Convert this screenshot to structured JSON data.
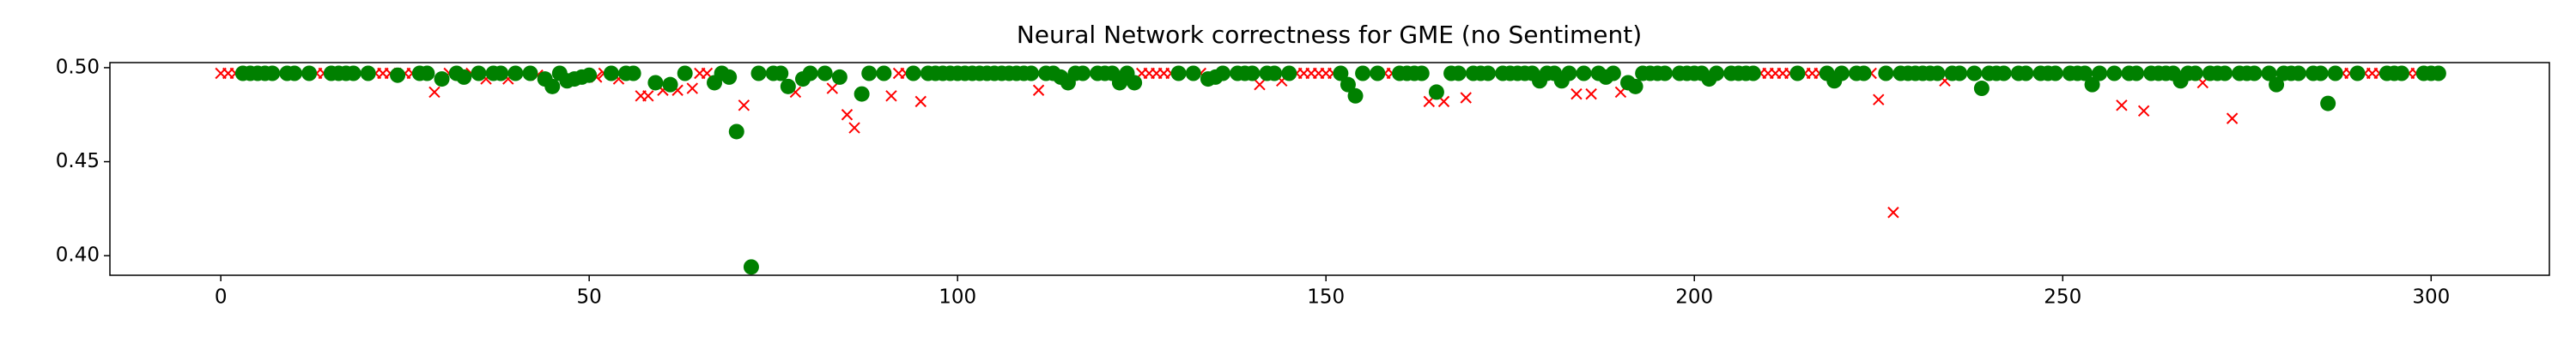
{
  "chart_data": {
    "type": "scatter",
    "title": "Neural Network correctness for GME (no Sentiment)",
    "xlim": [
      -15.05,
      316.05
    ],
    "xticks": [
      0,
      50,
      100,
      150,
      200,
      250,
      300
    ],
    "ylim": [
      0.3896,
      0.5027
    ],
    "yticks": [
      {
        "value": 0.4,
        "label": "0.40"
      },
      {
        "value": 0.45,
        "label": "0.45"
      },
      {
        "value": 0.5,
        "label": "0.50"
      }
    ],
    "grid": false,
    "series": [
      {
        "color": "#ff0000",
        "marker": "x",
        "x": [
          0,
          1,
          2,
          8,
          11,
          13,
          14,
          19,
          21,
          22,
          23,
          25,
          26,
          29,
          31,
          34,
          36,
          39,
          41,
          43,
          51,
          52,
          54,
          57,
          58,
          60,
          62,
          64,
          65,
          66,
          71,
          74,
          78,
          81,
          83,
          85,
          86,
          89,
          91,
          92,
          93,
          95,
          111,
          118,
          125,
          126,
          127,
          128,
          129,
          131,
          133,
          137,
          141,
          144,
          146,
          147,
          148,
          149,
          150,
          151,
          156,
          158,
          159,
          164,
          166,
          169,
          173,
          184,
          186,
          190,
          197,
          204,
          209,
          210,
          211,
          212,
          213,
          215,
          216,
          217,
          221,
          224,
          225,
          227,
          234,
          237,
          243,
          246,
          250,
          256,
          258,
          261,
          269,
          273,
          277,
          283,
          288,
          289,
          291,
          292,
          293,
          297,
          298
        ],
        "values": [
          0.497,
          0.497,
          0.497,
          0.497,
          0.497,
          0.497,
          0.497,
          0.497,
          0.497,
          0.497,
          0.497,
          0.497,
          0.497,
          0.487,
          0.497,
          0.497,
          0.494,
          0.494,
          0.497,
          0.496,
          0.495,
          0.497,
          0.494,
          0.485,
          0.485,
          0.488,
          0.488,
          0.489,
          0.497,
          0.497,
          0.48,
          0.497,
          0.487,
          0.497,
          0.489,
          0.475,
          0.468,
          0.497,
          0.485,
          0.497,
          0.497,
          0.482,
          0.488,
          0.497,
          0.497,
          0.497,
          0.497,
          0.497,
          0.497,
          0.497,
          0.497,
          0.497,
          0.491,
          0.493,
          0.497,
          0.497,
          0.497,
          0.497,
          0.497,
          0.497,
          0.497,
          0.497,
          0.497,
          0.482,
          0.482,
          0.484,
          0.497,
          0.486,
          0.486,
          0.487,
          0.497,
          0.497,
          0.497,
          0.497,
          0.497,
          0.497,
          0.497,
          0.497,
          0.497,
          0.497,
          0.497,
          0.497,
          0.483,
          0.423,
          0.493,
          0.497,
          0.497,
          0.497,
          0.497,
          0.497,
          0.48,
          0.477,
          0.492,
          0.473,
          0.497,
          0.497,
          0.497,
          0.497,
          0.497,
          0.497,
          0.497,
          0.497,
          0.497
        ]
      },
      {
        "color": "#008000",
        "marker": "o",
        "x": [
          3,
          4,
          5,
          6,
          7,
          9,
          10,
          12,
          15,
          16,
          17,
          18,
          20,
          24,
          27,
          28,
          30,
          32,
          33,
          35,
          37,
          38,
          40,
          42,
          44,
          45,
          46,
          47,
          48,
          49,
          50,
          53,
          55,
          56,
          59,
          61,
          63,
          67,
          68,
          69,
          70,
          72,
          73,
          75,
          76,
          77,
          79,
          80,
          82,
          84,
          87,
          88,
          90,
          94,
          96,
          97,
          98,
          99,
          100,
          101,
          102,
          103,
          104,
          105,
          106,
          107,
          108,
          109,
          110,
          112,
          113,
          114,
          115,
          116,
          117,
          119,
          120,
          121,
          122,
          123,
          124,
          130,
          132,
          134,
          135,
          136,
          138,
          139,
          140,
          142,
          143,
          145,
          152,
          153,
          154,
          155,
          157,
          160,
          161,
          162,
          163,
          165,
          167,
          168,
          170,
          171,
          172,
          174,
          175,
          176,
          177,
          178,
          179,
          180,
          181,
          182,
          183,
          185,
          187,
          188,
          189,
          191,
          192,
          193,
          194,
          195,
          196,
          198,
          199,
          200,
          201,
          202,
          203,
          205,
          206,
          207,
          208,
          214,
          218,
          219,
          220,
          222,
          223,
          226,
          228,
          229,
          230,
          231,
          232,
          233,
          235,
          236,
          238,
          239,
          240,
          241,
          242,
          244,
          245,
          247,
          248,
          249,
          251,
          252,
          253,
          254,
          255,
          257,
          259,
          260,
          262,
          263,
          264,
          265,
          266,
          267,
          268,
          270,
          271,
          272,
          274,
          275,
          276,
          278,
          279,
          280,
          281,
          282,
          284,
          285,
          286,
          287,
          290,
          294,
          295,
          296,
          299,
          300,
          301
        ],
        "values": [
          0.497,
          0.497,
          0.497,
          0.497,
          0.497,
          0.497,
          0.497,
          0.497,
          0.497,
          0.497,
          0.497,
          0.497,
          0.497,
          0.496,
          0.497,
          0.497,
          0.494,
          0.497,
          0.495,
          0.497,
          0.497,
          0.497,
          0.497,
          0.497,
          0.494,
          0.49,
          0.497,
          0.493,
          0.494,
          0.495,
          0.496,
          0.497,
          0.497,
          0.497,
          0.492,
          0.491,
          0.497,
          0.492,
          0.497,
          0.495,
          0.466,
          0.394,
          0.497,
          0.497,
          0.497,
          0.49,
          0.494,
          0.497,
          0.497,
          0.495,
          0.486,
          0.497,
          0.497,
          0.497,
          0.497,
          0.497,
          0.497,
          0.497,
          0.497,
          0.497,
          0.497,
          0.497,
          0.497,
          0.497,
          0.497,
          0.497,
          0.497,
          0.497,
          0.497,
          0.497,
          0.497,
          0.495,
          0.492,
          0.497,
          0.497,
          0.497,
          0.497,
          0.497,
          0.492,
          0.497,
          0.492,
          0.497,
          0.497,
          0.494,
          0.495,
          0.497,
          0.497,
          0.497,
          0.497,
          0.497,
          0.497,
          0.497,
          0.497,
          0.491,
          0.485,
          0.497,
          0.497,
          0.497,
          0.497,
          0.497,
          0.497,
          0.487,
          0.497,
          0.497,
          0.497,
          0.497,
          0.497,
          0.497,
          0.497,
          0.497,
          0.497,
          0.497,
          0.493,
          0.497,
          0.497,
          0.493,
          0.497,
          0.497,
          0.497,
          0.495,
          0.497,
          0.492,
          0.49,
          0.497,
          0.497,
          0.497,
          0.497,
          0.497,
          0.497,
          0.497,
          0.497,
          0.494,
          0.497,
          0.497,
          0.497,
          0.497,
          0.497,
          0.497,
          0.497,
          0.493,
          0.497,
          0.497,
          0.497,
          0.497,
          0.497,
          0.497,
          0.497,
          0.497,
          0.497,
          0.497,
          0.497,
          0.497,
          0.497,
          0.489,
          0.497,
          0.497,
          0.497,
          0.497,
          0.497,
          0.497,
          0.497,
          0.497,
          0.497,
          0.497,
          0.497,
          0.491,
          0.497,
          0.497,
          0.497,
          0.497,
          0.497,
          0.497,
          0.497,
          0.497,
          0.493,
          0.497,
          0.497,
          0.497,
          0.497,
          0.497,
          0.497,
          0.497,
          0.497,
          0.497,
          0.491,
          0.497,
          0.497,
          0.497,
          0.497,
          0.497,
          0.481,
          0.497,
          0.497,
          0.497,
          0.497,
          0.497,
          0.497,
          0.497,
          0.497
        ]
      }
    ]
  }
}
